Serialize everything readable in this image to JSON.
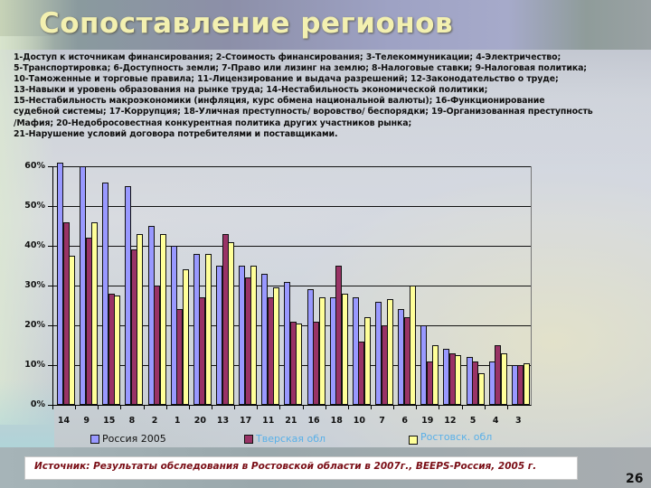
{
  "slide": {
    "title": "Сопоставление регионов",
    "page_number": "26"
  },
  "factor_legend": {
    "lines": [
      "1-Доступ к источникам финансирования; 2-Стоимость финансирования; 3-Телекоммуникации; 4-Электричество;",
      "5-Транспортировка; 6-Доступность земли; 7-Право или лизинг на землю; 8-Налоговые ставки; 9-Налоговая политика;",
      "10-Таможенные и торговые правила; 11-Лицензирование и выдача разрешений; 12-Законодательство о труде;",
      "13-Навыки и уровень образования на рынке труда; 14-Нестабильность экономической политики;",
      "15-Нестабильность макроэкономики (инфляция, курс обмена национальной валюты); 16-Функционирование",
      "судебной системы; 17-Коррупция; 18-Уличная преступность/ воровство/ беспорядки; 19-Организованная преступность",
      "/Мафия; 20-Недобросовестная конкурентная политика других участников рынка;",
      "21-Нарушение условий договора потребителями и поставщиками."
    ]
  },
  "source": {
    "text": "Источник: Результаты обследования в Ростовской области в 2007г., BEEPS-Россия, 2005 г."
  },
  "colors": {
    "russia": "#9999ff",
    "tver": "#993366",
    "rostov": "#ffff99",
    "title": "#f3f0b0",
    "source_text": "#7a0e16"
  },
  "chart_data": {
    "type": "bar",
    "title": "Сопоставление регионов",
    "xlabel": "",
    "ylabel": "",
    "ylim": [
      0,
      60
    ],
    "y_ticks": [
      "0%",
      "10%",
      "20%",
      "30%",
      "40%",
      "50%",
      "60%"
    ],
    "grid": true,
    "legend_position": "bottom",
    "categories": [
      "14",
      "9",
      "15",
      "8",
      "2",
      "1",
      "20",
      "13",
      "17",
      "11",
      "21",
      "16",
      "18",
      "10",
      "7",
      "6",
      "19",
      "12",
      "5",
      "4",
      "3"
    ],
    "series": [
      {
        "name": "Россия 2005",
        "color": "#9999ff",
        "values": [
          61,
          60,
          56,
          55,
          45,
          40,
          38,
          35,
          35,
          33,
          31,
          29,
          27,
          27,
          26,
          24,
          20,
          14,
          12,
          11,
          10
        ]
      },
      {
        "name": "Тверская обл",
        "color": "#993366",
        "values": [
          46,
          42,
          28,
          39,
          30,
          24,
          27,
          43,
          32,
          27,
          21,
          21,
          35,
          16,
          20,
          22,
          11,
          13,
          11,
          15,
          10
        ]
      },
      {
        "name": "Ростовск. обл",
        "color": "#ffff99",
        "values": [
          37.5,
          46,
          27.5,
          43,
          43,
          34,
          38,
          41,
          35,
          29.5,
          20.5,
          27,
          28,
          22,
          26.5,
          30,
          15,
          12.5,
          8,
          13,
          10.5
        ]
      }
    ]
  }
}
